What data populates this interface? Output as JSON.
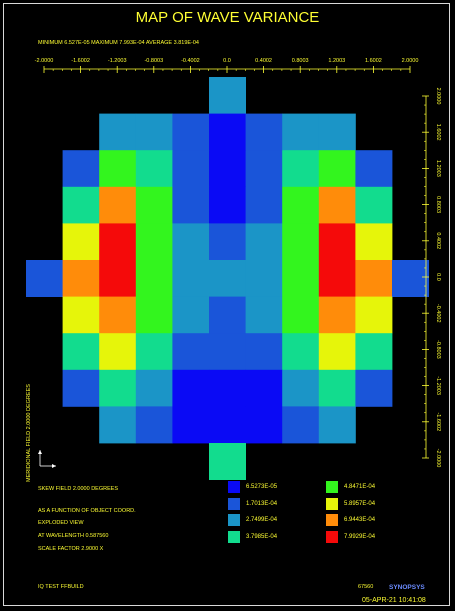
{
  "chart_data": {
    "type": "heatmap",
    "title": "MAP OF WAVE VARIANCE",
    "summary": "MINIMUM  6.527E-05 MAXIMUM  7.993E-04 AVERAGE  3.819E-04",
    "x_ticks": [
      "-2.0000",
      "-1.6002",
      "-1.2003",
      "-0.8003",
      "-0.4002",
      "0.0",
      "0.4002",
      "0.8003",
      "1.2003",
      "1.6002",
      "2.0000"
    ],
    "y_ticks": [
      "2.0000",
      "1.6002",
      "1.2003",
      "0.8003",
      "0.4002",
      "0.0",
      "-0.4002",
      "-0.8003",
      "-1.2003",
      "-1.6002",
      "-2.0000"
    ],
    "xlim": [
      -2.0,
      2.0
    ],
    "ylim": [
      -2.0,
      2.0
    ],
    "ylabel": "MERIDIONAL FIELD     2.0000 DEGREES",
    "grid_size": 11,
    "grid": [
      [
        -1,
        -1,
        -1,
        -1,
        -1,
        2,
        -1,
        -1,
        -1,
        -1,
        -1
      ],
      [
        -1,
        -1,
        2,
        2,
        1,
        0,
        1,
        2,
        2,
        -1,
        -1
      ],
      [
        -1,
        1,
        4,
        3,
        1,
        0,
        1,
        3,
        4,
        1,
        -1
      ],
      [
        -1,
        3,
        6,
        4,
        1,
        0,
        1,
        4,
        6,
        3,
        -1
      ],
      [
        -1,
        5,
        7,
        4,
        2,
        1,
        2,
        4,
        7,
        5,
        -1
      ],
      [
        1,
        6,
        7,
        4,
        2,
        2,
        2,
        4,
        7,
        6,
        1
      ],
      [
        -1,
        5,
        6,
        4,
        2,
        1,
        2,
        4,
        6,
        5,
        -1
      ],
      [
        -1,
        3,
        5,
        3,
        1,
        1,
        1,
        3,
        5,
        3,
        -1
      ],
      [
        -1,
        1,
        3,
        2,
        0,
        0,
        0,
        2,
        3,
        1,
        -1
      ],
      [
        -1,
        -1,
        2,
        1,
        0,
        0,
        0,
        1,
        2,
        -1,
        -1
      ],
      [
        -1,
        -1,
        -1,
        -1,
        -1,
        3,
        -1,
        -1,
        -1,
        -1,
        -1
      ]
    ],
    "legend": [
      {
        "label": "6.5273E-05",
        "color": "#0a0af5"
      },
      {
        "label": "1.7013E-04",
        "color": "#1a55d9"
      },
      {
        "label": "2.7499E-04",
        "color": "#1b95c7"
      },
      {
        "label": "3.7985E-04",
        "color": "#12dc8e"
      },
      {
        "label": "4.8471E-04",
        "color": "#33f51e"
      },
      {
        "label": "5.8957E-04",
        "color": "#e6f50a"
      },
      {
        "label": "6.9443E-04",
        "color": "#ff8c0a"
      },
      {
        "label": "7.9929E-04",
        "color": "#f50a0a"
      }
    ],
    "colors": [
      "#0a0af5",
      "#1a55d9",
      "#1b95c7",
      "#12dc8e",
      "#33f51e",
      "#e6f50a",
      "#ff8c0a",
      "#f50a0a"
    ]
  },
  "info": {
    "skew_field": "SKEW FIELD     2.0000 DEGREES",
    "function": "AS A FUNCTION OF OBJECT COORD.",
    "view": "EXPLODED VIEW",
    "wavelength": "AT WAVELENGTH     0.587560",
    "scale": "SCALE FACTOR     2.9000 X",
    "test": "IQ TEST FFBUILD",
    "id": "67560",
    "brand": "SYNOPSYS",
    "datetime": "05-APR-21  10:41:08"
  }
}
